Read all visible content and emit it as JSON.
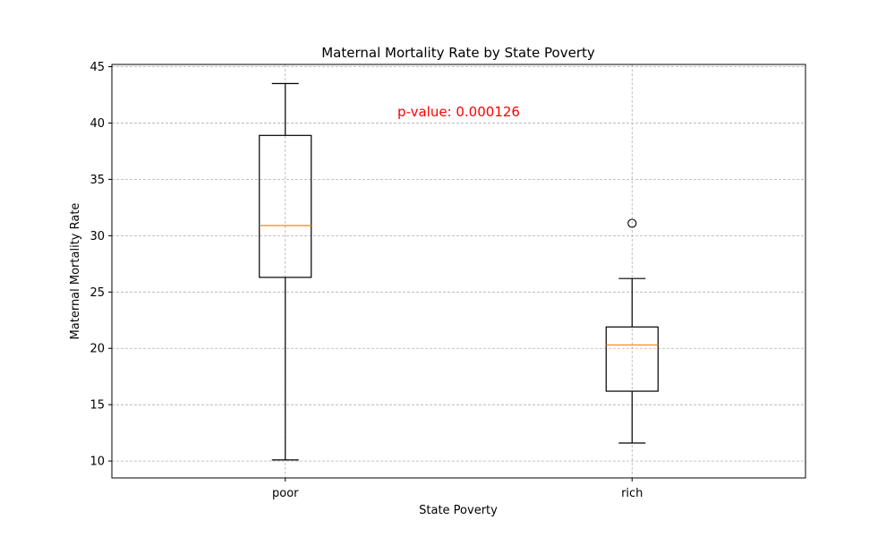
{
  "chart_data": {
    "type": "box",
    "title": "Maternal Mortality Rate by State Poverty",
    "xlabel": "State Poverty",
    "ylabel": "Maternal Mortality Rate",
    "ylim": [
      8.5,
      45.2
    ],
    "yticks": [
      10,
      15,
      20,
      25,
      30,
      35,
      40,
      45
    ],
    "grid": true,
    "categories": [
      "poor",
      "rich"
    ],
    "boxes": [
      {
        "label": "poor",
        "whisker_low": 10.1,
        "q1": 26.3,
        "median": 30.9,
        "q3": 38.9,
        "whisker_high": 43.5,
        "outliers": []
      },
      {
        "label": "rich",
        "whisker_low": 11.6,
        "q1": 16.2,
        "median": 20.3,
        "q3": 21.9,
        "whisker_high": 26.2,
        "outliers": [
          31.1
        ]
      }
    ],
    "annotation": {
      "text": "p-value: 0.000126",
      "x": 1.5,
      "y": 40.6,
      "color": "#ff0000"
    },
    "colors": {
      "box": "#000000",
      "median": "#ff7f0e",
      "grid": "#b0b0b0"
    }
  }
}
